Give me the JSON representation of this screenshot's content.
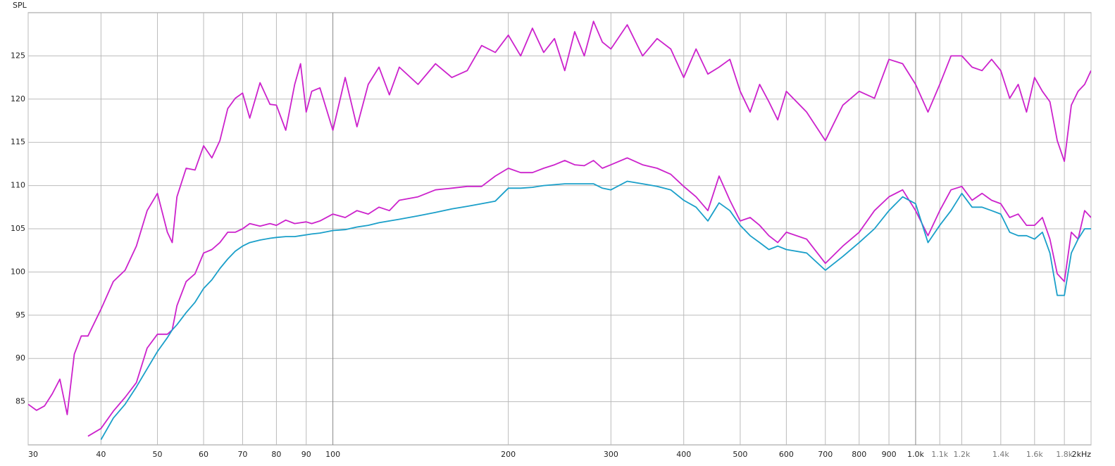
{
  "chart_data": {
    "type": "line",
    "ylabel": "SPL",
    "x": [
      30,
      31,
      32,
      33,
      34,
      35,
      36,
      37,
      38,
      40,
      42,
      44,
      46,
      48,
      50,
      52,
      53,
      54,
      56,
      58,
      60,
      62,
      64,
      66,
      68,
      70,
      72,
      75,
      78,
      80,
      83,
      86,
      88,
      90,
      92,
      95,
      100,
      105,
      110,
      115,
      120,
      125,
      130,
      140,
      150,
      160,
      170,
      180,
      190,
      200,
      210,
      220,
      230,
      240,
      250,
      260,
      270,
      280,
      290,
      300,
      320,
      340,
      360,
      380,
      400,
      420,
      440,
      460,
      480,
      500,
      520,
      540,
      560,
      580,
      600,
      650,
      700,
      750,
      800,
      850,
      900,
      950,
      1000,
      1050,
      1100,
      1150,
      1200,
      1250,
      1300,
      1350,
      1400,
      1450,
      1500,
      1550,
      1600,
      1650,
      1700,
      1750,
      1800,
      1850,
      1900,
      1950,
      2000
    ],
    "series": [
      {
        "color": "#cc22cc",
        "values": [
          84.7,
          84.0,
          84.5,
          85.9,
          87.6,
          83.5,
          90.5,
          92.6,
          92.6,
          95.7,
          98.9,
          100.2,
          103.0,
          107.1,
          109.1,
          104.6,
          103.4,
          108.7,
          112.0,
          111.8,
          114.6,
          113.2,
          115.2,
          118.9,
          120.1,
          120.7,
          117.8,
          121.9,
          119.4,
          119.3,
          116.4,
          121.7,
          124.1,
          118.5,
          120.9,
          121.3,
          116.4,
          122.5,
          116.8,
          121.7,
          123.7,
          120.5,
          123.7,
          121.7,
          124.1,
          122.5,
          123.3,
          126.2,
          125.4,
          127.4,
          125.0,
          128.2,
          125.4,
          127.0,
          123.3,
          127.8,
          125.0,
          129.0,
          126.6,
          125.8,
          128.6,
          125.0,
          127.0,
          125.8,
          122.5,
          125.8,
          122.9,
          123.7,
          124.6,
          120.9,
          118.5,
          121.7,
          119.7,
          117.6,
          120.9,
          118.5,
          115.2,
          119.3,
          120.9,
          120.1,
          124.6,
          124.1,
          121.7,
          118.5,
          121.7,
          125.0,
          125.0,
          123.7,
          123.3,
          124.6,
          123.3,
          120.1,
          121.7,
          118.5,
          122.5,
          120.9,
          119.7,
          115.2,
          112.8,
          119.3,
          120.9,
          121.7,
          123.3
        ]
      },
      {
        "color": "#cc22cc",
        "values": [
          null,
          null,
          null,
          null,
          null,
          null,
          null,
          null,
          81.0,
          81.9,
          83.9,
          85.5,
          87.2,
          91.2,
          92.8,
          92.8,
          93.3,
          96.1,
          98.9,
          99.8,
          102.2,
          102.6,
          103.4,
          104.6,
          104.6,
          105.0,
          105.6,
          105.3,
          105.6,
          105.4,
          106.0,
          105.6,
          105.7,
          105.8,
          105.6,
          105.9,
          106.7,
          106.3,
          107.1,
          106.7,
          107.5,
          107.1,
          108.3,
          108.7,
          109.5,
          109.7,
          109.9,
          109.9,
          111.1,
          112.0,
          111.5,
          111.5,
          112.0,
          112.4,
          112.9,
          112.4,
          112.3,
          112.9,
          112.0,
          112.4,
          113.2,
          112.4,
          112.0,
          111.3,
          109.9,
          108.7,
          107.1,
          111.1,
          108.3,
          105.9,
          106.3,
          105.4,
          104.2,
          103.4,
          104.6,
          103.8,
          101.0,
          103.0,
          104.6,
          107.1,
          108.7,
          109.5,
          107.1,
          104.2,
          107.1,
          109.5,
          109.9,
          108.3,
          109.1,
          108.3,
          107.9,
          106.3,
          106.7,
          105.4,
          105.4,
          106.3,
          103.8,
          99.8,
          98.9,
          104.6,
          103.8,
          107.1,
          106.3
        ]
      },
      {
        "color": "#1a9fc9",
        "values": [
          null,
          null,
          null,
          null,
          null,
          null,
          null,
          null,
          null,
          80.6,
          83.1,
          84.7,
          86.7,
          88.8,
          90.8,
          92.4,
          93.3,
          93.9,
          95.3,
          96.5,
          98.1,
          99.1,
          100.4,
          101.5,
          102.4,
          103.0,
          103.4,
          103.7,
          103.9,
          104.0,
          104.1,
          104.1,
          104.2,
          104.3,
          104.4,
          104.5,
          104.8,
          104.9,
          105.2,
          105.4,
          105.7,
          105.9,
          106.1,
          106.5,
          106.9,
          107.3,
          107.6,
          107.9,
          108.2,
          109.7,
          109.7,
          109.8,
          110.0,
          110.1,
          110.2,
          110.2,
          110.2,
          110.2,
          109.7,
          109.5,
          110.5,
          110.2,
          109.9,
          109.5,
          108.3,
          107.5,
          105.9,
          108.0,
          107.1,
          105.4,
          104.2,
          103.4,
          102.6,
          103.0,
          102.6,
          102.2,
          100.2,
          101.8,
          103.4,
          105.0,
          107.1,
          108.7,
          107.9,
          103.4,
          105.4,
          107.1,
          109.1,
          107.5,
          107.5,
          107.1,
          106.7,
          104.6,
          104.2,
          104.2,
          103.8,
          104.6,
          102.2,
          97.3,
          97.3,
          102.2,
          103.8,
          105.0,
          105.0
        ]
      }
    ],
    "xlim": [
      30,
      2000
    ],
    "ylim": [
      80,
      130
    ],
    "log_x": true,
    "grid": true,
    "xticks": [
      30,
      40,
      50,
      60,
      70,
      80,
      90,
      100,
      200,
      300,
      400,
      500,
      600,
      700,
      800,
      900,
      {
        "value": 1000,
        "label": "1.0k"
      },
      {
        "value": 1100,
        "label": "1.1k"
      },
      {
        "value": 1200,
        "label": "1.2k"
      },
      {
        "value": 1400,
        "label": "1.4k"
      },
      {
        "value": 1600,
        "label": "1.6k"
      },
      {
        "value": 1800,
        "label": "1.8k"
      },
      {
        "value": 2000,
        "label": "2kHz"
      }
    ],
    "yticks": [
      85,
      90,
      95,
      100,
      105,
      110,
      115,
      120,
      125
    ]
  }
}
